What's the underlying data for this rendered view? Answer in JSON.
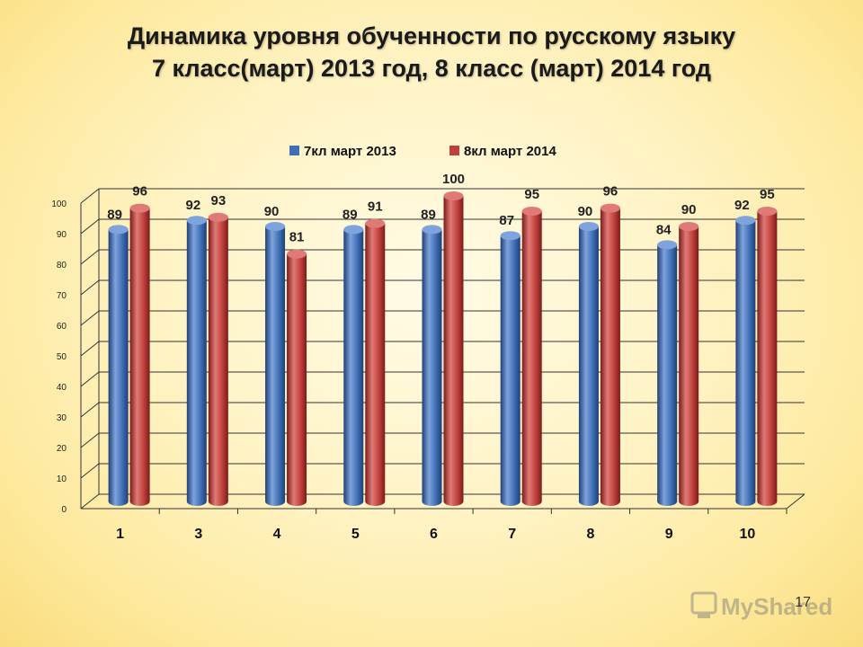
{
  "title": {
    "line1": "Динамика уровня обученности по русскому языку",
    "line2": "7 класс(март) 2013 год, 8 класс (март) 2014 год"
  },
  "slide_number": "17",
  "watermark_text": "MyShared",
  "colors": {
    "series1": "#3f6fb5",
    "series1_dark": "#1f3f78",
    "series1_light": "#7fa3dc",
    "series2": "#c0403c",
    "series2_dark": "#7a1c1a",
    "series2_light": "#e07a76",
    "grid": "#333333",
    "background": "#fff3c4"
  },
  "chart_data": {
    "type": "bar",
    "style": "3d-cylinder",
    "categories": [
      "1",
      "3",
      "4",
      "5",
      "6",
      "7",
      "8",
      "9",
      "10"
    ],
    "series": [
      {
        "name": "7кл март 2013",
        "values": [
          89,
          92,
          90,
          89,
          89,
          87,
          90,
          84,
          92
        ]
      },
      {
        "name": "8кл март 2014",
        "values": [
          96,
          93,
          81,
          91,
          100,
          95,
          96,
          90,
          95
        ]
      }
    ],
    "yticks": [
      "0",
      "10",
      "20",
      "30",
      "40",
      "50",
      "60",
      "70",
      "80",
      "90",
      "100"
    ],
    "ylim": [
      0,
      100
    ],
    "xlabel": "",
    "ylabel": "",
    "grid": true,
    "legend_position": "top",
    "data_labels": true
  }
}
